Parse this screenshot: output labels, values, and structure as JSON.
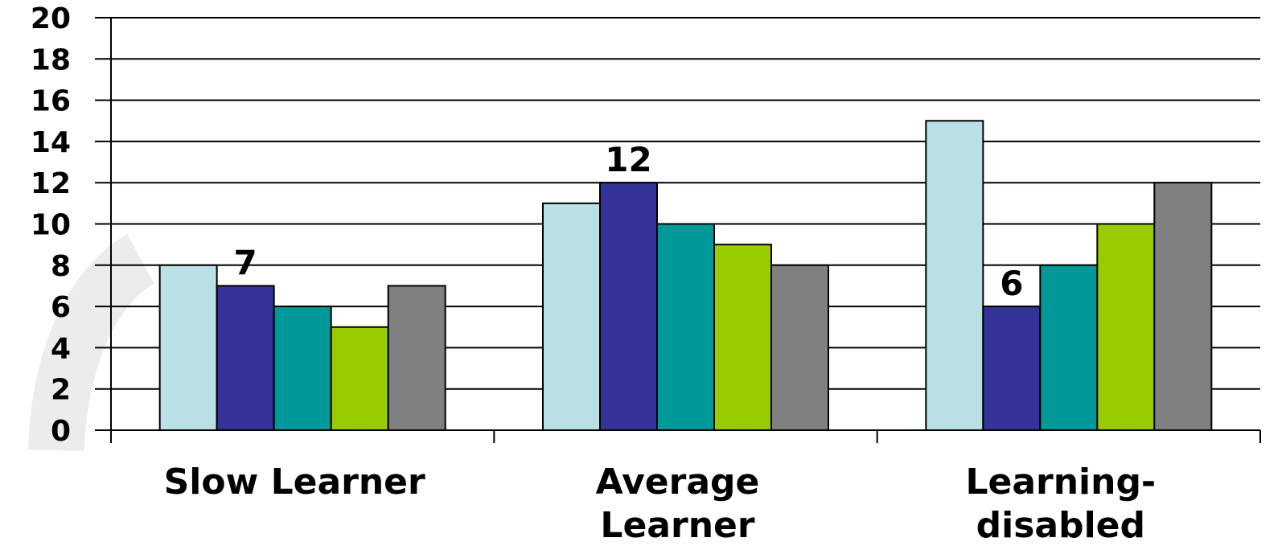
{
  "chart_data": {
    "type": "bar",
    "categories": [
      [
        "Slow Learner"
      ],
      [
        "Average",
        "Learner"
      ],
      [
        "Learning-",
        "disabled"
      ]
    ],
    "series": [
      {
        "color": "#b9e0e4",
        "values": [
          8,
          11,
          15
        ]
      },
      {
        "color": "#333399",
        "values": [
          7,
          12,
          6
        ]
      },
      {
        "color": "#009999",
        "values": [
          6,
          10,
          8
        ]
      },
      {
        "color": "#99cc00",
        "values": [
          5,
          9,
          10
        ]
      },
      {
        "color": "#808080",
        "values": [
          7,
          8,
          12
        ]
      }
    ],
    "yticks": [
      0,
      2,
      4,
      6,
      8,
      10,
      12,
      14,
      16,
      18,
      20
    ],
    "ylim": [
      0,
      20
    ],
    "data_labels": [
      {
        "series": 1,
        "category": 0,
        "text": "7"
      },
      {
        "series": 1,
        "category": 1,
        "text": "12"
      },
      {
        "series": 1,
        "category": 2,
        "text": "6"
      }
    ],
    "grid": true,
    "legend": "none"
  }
}
